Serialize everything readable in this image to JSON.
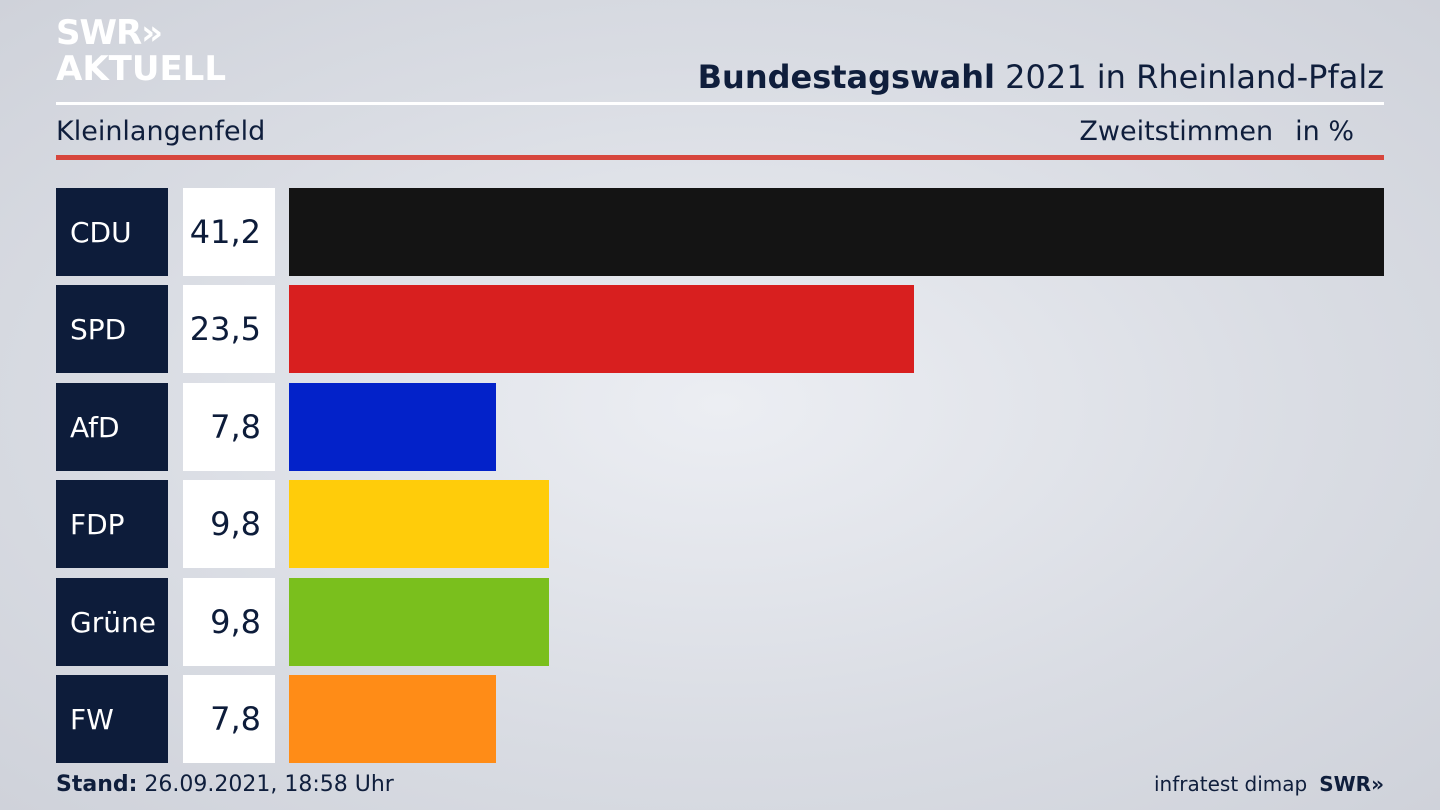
{
  "logo": {
    "line1": "SWR»",
    "line2": "AKTUELL"
  },
  "header": {
    "title_bold": "Bundestagswahl",
    "title_rest": " 2021 in Rheinland-Pfalz",
    "region": "Kleinlangenfeld",
    "measure": "Zweitstimmen",
    "unit": "in %"
  },
  "chart_data": {
    "type": "bar",
    "orientation": "horizontal",
    "categories": [
      "CDU",
      "SPD",
      "AfD",
      "FDP",
      "Grüne",
      "FW"
    ],
    "values": [
      41.2,
      23.5,
      7.8,
      9.8,
      9.8,
      7.8
    ],
    "value_labels": [
      "41,2",
      "23,5",
      "7,8",
      "9,8",
      "9,8",
      "7,8"
    ],
    "colors": [
      "#141414",
      "#d81f1f",
      "#0322c9",
      "#ffcc0a",
      "#7abf1d",
      "#ff8c17"
    ],
    "xlim": [
      0,
      41.2
    ]
  },
  "footer": {
    "stand_label": "Stand:",
    "stand_value": " 26.09.2021, 18:58 Uhr",
    "source": "infratest dimap",
    "brand": "SWR»"
  }
}
